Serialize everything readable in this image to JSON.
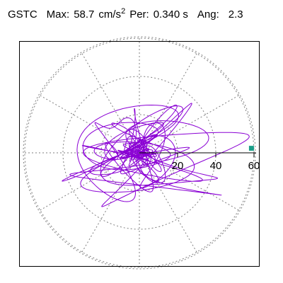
{
  "header": {
    "station": "GSTC",
    "max_label": "Max:",
    "max_value": "58.7",
    "max_unit_base": "cm/s",
    "max_unit_exp": "2",
    "per_label": "Per:",
    "per_value": "0.340 s",
    "ang_label": "Ang:",
    "ang_value": "2.3"
  },
  "colors": {
    "trace": "#8a00d4",
    "peak_marker": "#1a9e88",
    "grid": "#7f7f7f",
    "frame": "#000000"
  },
  "chart_data": {
    "type": "scatter",
    "coordinate_system": "polar",
    "radial_ticks": [
      20,
      40,
      60
    ],
    "radial_tick_labels": [
      "20",
      "40",
      "60"
    ],
    "grid": true,
    "peak": {
      "radius": 58.7,
      "angle_deg": 2.3
    },
    "trace_note": "horizontal-dominant particle motion orbit, amplitudes within about ±58.7"
  }
}
